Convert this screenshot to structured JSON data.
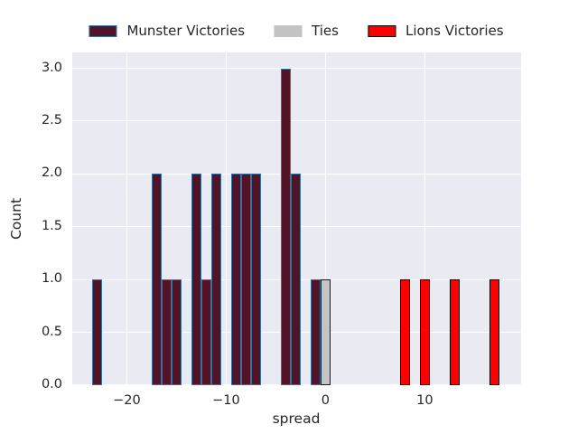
{
  "styles": {
    "figure_bg": "#FFFFFF",
    "plot_bg": "#EAEAF2",
    "grid_color": "#FFFFFF",
    "text_color": "#262626"
  },
  "chart_data": {
    "type": "bar",
    "title": "",
    "xlabel": "spread",
    "ylabel": "Count",
    "xlim": [
      -25.5,
      19.7
    ],
    "ylim": [
      0,
      3.15
    ],
    "bar_width": 1,
    "grid": true,
    "legend_position": "top",
    "xticks": [
      {
        "v": -20,
        "label": "−20"
      },
      {
        "v": -10,
        "label": "−10"
      },
      {
        "v": 0,
        "label": "0"
      },
      {
        "v": 10,
        "label": "10"
      }
    ],
    "yticks": [
      {
        "v": 0.0,
        "label": "0.0"
      },
      {
        "v": 0.5,
        "label": "0.5"
      },
      {
        "v": 1.0,
        "label": "1.0"
      },
      {
        "v": 1.5,
        "label": "1.5"
      },
      {
        "v": 2.0,
        "label": "2.0"
      },
      {
        "v": 2.5,
        "label": "2.5"
      },
      {
        "v": 3.0,
        "label": "3.0"
      }
    ],
    "series": [
      {
        "name": "Munster Victories",
        "fill_color": "#531327",
        "edge_color": "#3572A0",
        "legend_edge_color": "#3572A0",
        "points": [
          {
            "spread": -23,
            "count": 1
          },
          {
            "spread": -17,
            "count": 2
          },
          {
            "spread": -16,
            "count": 1
          },
          {
            "spread": -15,
            "count": 1
          },
          {
            "spread": -13,
            "count": 2
          },
          {
            "spread": -12,
            "count": 1
          },
          {
            "spread": -11,
            "count": 2
          },
          {
            "spread": -9,
            "count": 2
          },
          {
            "spread": -8,
            "count": 2
          },
          {
            "spread": -7,
            "count": 2
          },
          {
            "spread": -4,
            "count": 3
          },
          {
            "spread": -3,
            "count": 2
          },
          {
            "spread": -1,
            "count": 1
          }
        ]
      },
      {
        "name": "Ties",
        "fill_color": "#C4C4C4",
        "edge_color": "#1A1A1A",
        "legend_edge_color": "#C4C4C4",
        "points": [
          {
            "spread": 0,
            "count": 1
          }
        ]
      },
      {
        "name": "Lions Victories",
        "fill_color": "#FF0000",
        "edge_color": "#000000",
        "legend_edge_color": "#000000",
        "points": [
          {
            "spread": 8,
            "count": 1
          },
          {
            "spread": 10,
            "count": 1
          },
          {
            "spread": 13,
            "count": 1
          },
          {
            "spread": 17,
            "count": 1
          }
        ]
      }
    ]
  }
}
